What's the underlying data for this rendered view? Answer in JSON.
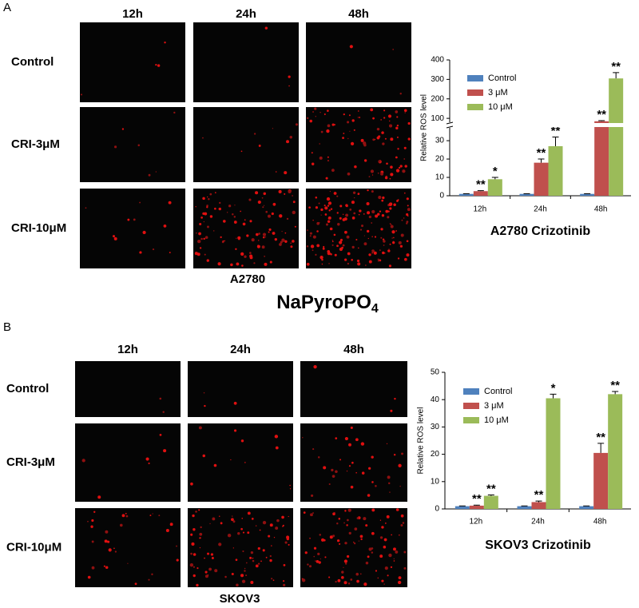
{
  "panels": [
    {
      "label": "A",
      "columns": [
        "12h",
        "24h",
        "48h"
      ],
      "rows": [
        "Control",
        "CRI-3μM",
        "CRI-10μM"
      ],
      "caption": "A2780"
    },
    {
      "label": "B",
      "columns": [
        "12h",
        "24h",
        "48h"
      ],
      "rows": [
        "Control",
        "CRI-3μM",
        "CRI-10μM"
      ],
      "caption": "SKOV3"
    }
  ],
  "reagent": {
    "name": "NaPyroPO",
    "subscript": "4"
  },
  "chart_data": [
    {
      "type": "bar",
      "title": "A2780   Crizotinib",
      "y_label": "Relative ROS level",
      "categories": [
        "12h",
        "24h",
        "48h"
      ],
      "series": [
        {
          "name": "Control",
          "color": "#4f81bd",
          "values": [
            1,
            1,
            1
          ],
          "errors": [
            0.1,
            0.1,
            0.1
          ]
        },
        {
          "name": "3 μM",
          "color": "#c0504d",
          "values": [
            2.5,
            18,
            85
          ],
          "errors": [
            0.3,
            2,
            3
          ],
          "significance": [
            "**",
            "**",
            "**"
          ]
        },
        {
          "name": "10 μM",
          "color": "#9bbb59",
          "values": [
            9,
            27,
            305
          ],
          "errors": [
            1,
            5,
            30
          ],
          "significance": [
            "*",
            "**",
            "**"
          ]
        }
      ],
      "ylim": [
        0,
        37
      ],
      "yticks": [
        0,
        10,
        20,
        30
      ],
      "y_break": {
        "ylim": [
          80,
          400
        ],
        "yticks": [
          100,
          200,
          300,
          400
        ]
      },
      "legend": "upper left"
    },
    {
      "type": "bar",
      "title": "SKOV3   Crizotinib",
      "y_label": "Relative ROS level",
      "categories": [
        "12h",
        "24h",
        "48h"
      ],
      "series": [
        {
          "name": "Control",
          "color": "#4f81bd",
          "values": [
            1,
            1,
            1
          ],
          "errors": [
            0.1,
            0.1,
            0.1
          ]
        },
        {
          "name": "3 μM",
          "color": "#c0504d",
          "values": [
            1.2,
            2.5,
            20.5
          ],
          "errors": [
            0.2,
            0.4,
            3.5
          ],
          "significance": [
            "**",
            "**",
            "**"
          ]
        },
        {
          "name": "10 μM",
          "color": "#9bbb59",
          "values": [
            4.8,
            40.5,
            42
          ],
          "errors": [
            0.3,
            1.5,
            1
          ],
          "significance": [
            "**",
            "*",
            "**"
          ]
        }
      ],
      "ylim": [
        0,
        50
      ],
      "yticks": [
        0,
        10,
        20,
        30,
        40,
        50
      ],
      "legend": "upper left"
    }
  ]
}
